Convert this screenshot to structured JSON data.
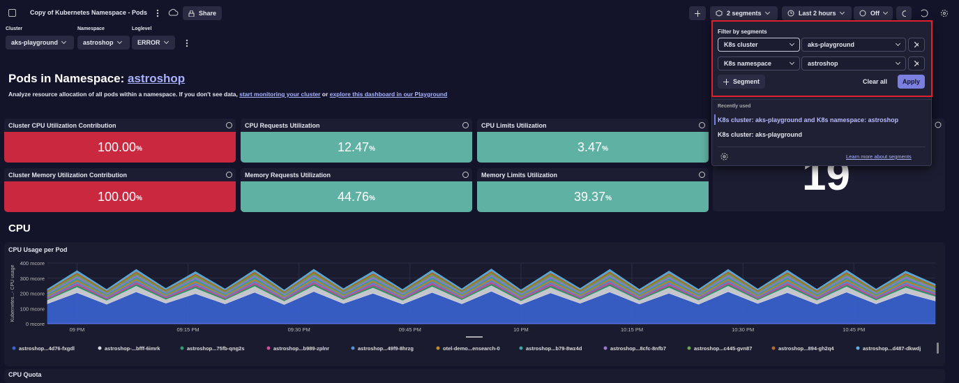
{
  "toolbar": {
    "title": "Copy of Kubernetes Namespace - Pods",
    "share": "Share",
    "segments": "2 segments",
    "timeframe": "Last 2 hours",
    "refresh": "Off"
  },
  "filters": [
    {
      "label": "Cluster",
      "value": "aks-playground"
    },
    {
      "label": "Namespace",
      "value": "astroshop"
    },
    {
      "label": "Loglevel",
      "value": "ERROR"
    }
  ],
  "intro": {
    "heading": "Pods in Namespace: ",
    "heading_link": "astroshop",
    "text_1": "Analyze resource allocation of all pods within a namespace. If you don't see data, ",
    "link_1": "start monitoring your cluster",
    "text_2": " or ",
    "link_2": "explore this dashboard in our Playground"
  },
  "tiles": [
    {
      "title": "Cluster CPU Utilization Contribution",
      "value": "100.00",
      "unit": "%"
    },
    {
      "title": "CPU Requests Utilization",
      "value": "12.47",
      "unit": "%"
    },
    {
      "title": "CPU Limits Utilization",
      "value": "3.47",
      "unit": "%"
    },
    {
      "title": "Cluster Memory Utilization Contribution",
      "value": "100.00",
      "unit": "%"
    },
    {
      "title": "Memory Requests Utilization",
      "value": "44.76",
      "unit": "%"
    },
    {
      "title": "Memory Limits Utilization",
      "value": "39.37",
      "unit": "%"
    }
  ],
  "big_tile": {
    "value": "19"
  },
  "section": "CPU",
  "chart_data": {
    "type": "area",
    "stacked": true,
    "title": "CPU Usage per Pod",
    "y_label": "Kubernetes...- CPU usage",
    "x": [
      -4,
      0,
      4,
      8,
      12,
      16,
      20,
      24,
      28,
      32,
      36,
      40,
      44,
      48,
      52,
      56,
      60,
      64,
      68,
      72,
      76,
      80,
      84,
      88,
      92,
      96,
      100,
      104,
      108,
      112,
      116
    ],
    "xlim": [
      -4,
      116
    ],
    "xticks": [
      {
        "value": 0,
        "label": "09 PM"
      },
      {
        "value": 15,
        "label": "09:15 PM"
      },
      {
        "value": 30,
        "label": "09:30 PM"
      },
      {
        "value": 45,
        "label": "09:45 PM"
      },
      {
        "value": 60,
        "label": "10 PM"
      },
      {
        "value": 75,
        "label": "10:15 PM"
      },
      {
        "value": 90,
        "label": "10:30 PM"
      },
      {
        "value": 105,
        "label": "10:45 PM"
      }
    ],
    "ylim": [
      0,
      400
    ],
    "yticks": [
      {
        "value": 0,
        "label": "0 mcore"
      },
      {
        "value": 100,
        "label": "100 mcore"
      },
      {
        "value": 200,
        "label": "200 mcore"
      },
      {
        "value": 300,
        "label": "300 mcore"
      },
      {
        "value": 400,
        "label": "400 mcore"
      }
    ],
    "grid": true,
    "series": [
      {
        "name": "astroshop...4d76-fxgdl",
        "color": "#3a63d1",
        "values": [
          132,
          204,
          128,
          210,
          135,
          198,
          130,
          207,
          126,
          212,
          133,
          200,
          129,
          206,
          131,
          214,
          127,
          203,
          134,
          209,
          130,
          201,
          128,
          211,
          133,
          205,
          129,
          208,
          131,
          202,
          150
        ]
      },
      {
        "name": "astroshop-...bfff-6imrk",
        "color": "#d8d8de",
        "values": [
          24,
          38,
          26,
          40,
          25,
          37,
          27,
          41,
          24,
          39,
          26,
          38,
          25,
          40,
          27,
          39,
          24,
          37,
          26,
          41,
          25,
          38,
          27,
          39,
          24,
          40,
          26,
          38,
          25,
          37,
          30
        ]
      },
      {
        "name": "astroshop...75fb-qng2s",
        "color": "#2e9e6a",
        "values": [
          8,
          12,
          8,
          12,
          8,
          12,
          8,
          12,
          8,
          12,
          8,
          12,
          8,
          12,
          8,
          12,
          8,
          12,
          8,
          12,
          8,
          12,
          8,
          12,
          8,
          12,
          8,
          12,
          8,
          12,
          9
        ]
      },
      {
        "name": "astroshop...b989-zplnr",
        "color": "#d04f9a",
        "values": [
          8,
          12,
          8,
          12,
          8,
          12,
          8,
          12,
          8,
          12,
          8,
          12,
          8,
          12,
          8,
          12,
          8,
          12,
          8,
          12,
          8,
          12,
          8,
          12,
          8,
          12,
          8,
          12,
          8,
          12,
          9
        ]
      },
      {
        "name": "astroshop...49f9-8hrzg",
        "color": "#5b8fd6",
        "values": [
          8,
          12,
          8,
          12,
          8,
          12,
          8,
          12,
          8,
          12,
          8,
          12,
          8,
          12,
          8,
          12,
          8,
          12,
          8,
          12,
          8,
          12,
          8,
          12,
          8,
          12,
          8,
          12,
          8,
          12,
          9
        ]
      },
      {
        "name": "otel-demo...ensearch-0",
        "color": "#c48a2c",
        "values": [
          8,
          12,
          8,
          12,
          8,
          12,
          8,
          12,
          8,
          12,
          8,
          12,
          8,
          12,
          8,
          12,
          8,
          12,
          8,
          12,
          8,
          12,
          8,
          12,
          8,
          12,
          8,
          12,
          8,
          12,
          9
        ]
      },
      {
        "name": "astroshop...b79-8wz4d",
        "color": "#3aa6a6",
        "values": [
          8,
          12,
          8,
          12,
          8,
          12,
          8,
          12,
          8,
          12,
          8,
          12,
          8,
          12,
          8,
          12,
          8,
          12,
          8,
          12,
          8,
          12,
          8,
          12,
          8,
          12,
          8,
          12,
          8,
          12,
          9
        ]
      },
      {
        "name": "astroshop...8cfc-8nfb7",
        "color": "#9b7ad9",
        "values": [
          8,
          12,
          8,
          12,
          8,
          12,
          8,
          12,
          8,
          12,
          8,
          12,
          8,
          12,
          8,
          12,
          8,
          12,
          8,
          12,
          8,
          12,
          8,
          12,
          8,
          12,
          8,
          12,
          8,
          12,
          9
        ]
      },
      {
        "name": "astroshop...c445-gvn87",
        "color": "#6aa84f",
        "values": [
          8,
          12,
          8,
          12,
          8,
          12,
          8,
          12,
          8,
          12,
          8,
          12,
          8,
          12,
          8,
          12,
          8,
          12,
          8,
          12,
          8,
          12,
          8,
          12,
          8,
          12,
          8,
          12,
          8,
          12,
          9
        ]
      },
      {
        "name": "astroshop...894-gh2q4",
        "color": "#b86b2c",
        "values": [
          8,
          12,
          8,
          12,
          8,
          12,
          8,
          12,
          8,
          12,
          8,
          12,
          8,
          12,
          8,
          12,
          8,
          12,
          8,
          12,
          8,
          12,
          8,
          12,
          8,
          12,
          8,
          12,
          8,
          12,
          9
        ]
      },
      {
        "name": "astroshop...d487-dkwdj",
        "color": "#5ab4e6",
        "values": [
          8,
          12,
          8,
          12,
          8,
          12,
          8,
          12,
          8,
          12,
          8,
          12,
          8,
          12,
          8,
          12,
          8,
          12,
          8,
          12,
          8,
          12,
          8,
          12,
          8,
          12,
          8,
          12,
          8,
          12,
          9
        ]
      }
    ]
  },
  "next_tile": "CPU Quota",
  "segment_panel": {
    "title": "Filter by segments",
    "rows": [
      {
        "key": "K8s cluster",
        "value": "aks-playground"
      },
      {
        "key": "K8s namespace",
        "value": "astroshop"
      }
    ],
    "add": "Segment",
    "clear": "Clear all",
    "apply": "Apply",
    "recent_title": "Recently used",
    "recent": [
      "K8s cluster: aks-playground and K8s namespace: astroshop",
      "K8s cluster: aks-playground"
    ],
    "learn_more": "Learn more about segments"
  }
}
